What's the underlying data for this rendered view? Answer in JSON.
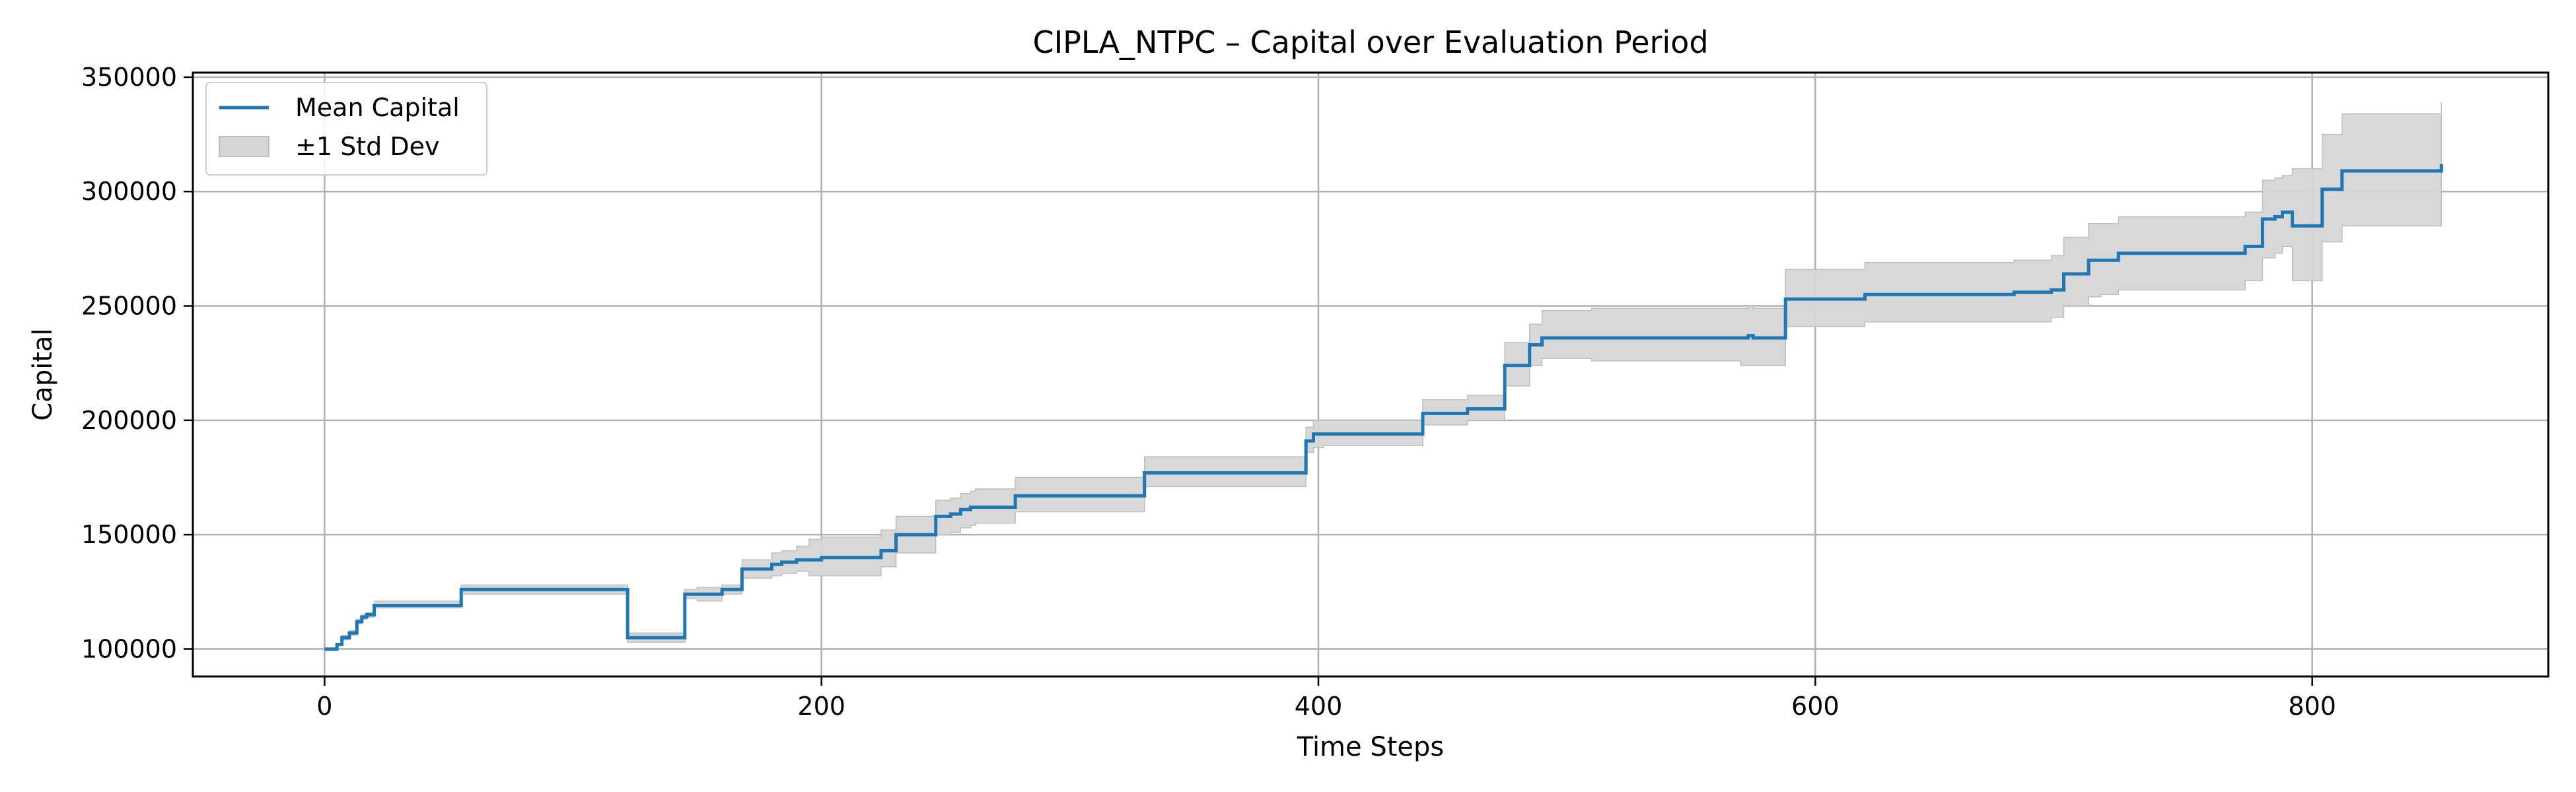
{
  "chart_data": {
    "type": "line",
    "title": "CIPLA_NTPC – Capital over Evaluation Period",
    "xlabel": "Time Steps",
    "ylabel": "Capital",
    "xlim": [
      -53,
      895
    ],
    "ylim": [
      88000,
      352000
    ],
    "xticks": [
      0,
      200,
      400,
      600,
      800
    ],
    "xtick_labels": [
      "0",
      "200",
      "400",
      "600",
      "800"
    ],
    "yticks": [
      100000,
      150000,
      200000,
      250000,
      300000,
      350000
    ],
    "ytick_labels": [
      "100000",
      "150000",
      "200000",
      "250000",
      "300000",
      "350000"
    ],
    "grid": true,
    "legend_position": "top-left",
    "colors": {
      "mean": "#1f77b4",
      "band": "#d6d6d6",
      "band_edge": "#bdbdbd"
    },
    "series": [
      {
        "name": "Mean Capital",
        "kind": "line",
        "x": [
          0,
          5,
          7,
          10,
          13,
          15,
          17,
          20,
          55,
          122,
          145,
          150,
          160,
          168,
          180,
          184,
          190,
          195,
          200,
          220,
          224,
          230,
          246,
          252,
          256,
          260,
          262,
          278,
          294,
          330,
          395,
          398,
          402,
          420,
          442,
          452,
          456,
          460,
          475,
          485,
          490,
          510,
          560,
          570,
          573,
          575,
          588,
          600,
          620,
          640,
          660,
          680,
          690,
          695,
          700,
          710,
          715,
          722,
          740,
          760,
          773,
          780,
          785,
          788,
          792,
          804,
          812,
          840,
          852
        ],
        "y": [
          100000,
          102000,
          105000,
          107000,
          112000,
          114000,
          115000,
          119000,
          126000,
          105000,
          124000,
          124000,
          126000,
          135000,
          137000,
          138000,
          139000,
          139000,
          140000,
          140000,
          143000,
          150000,
          158000,
          159000,
          161000,
          162000,
          162000,
          167000,
          167000,
          177000,
          191000,
          194000,
          194000,
          194000,
          203000,
          203000,
          203000,
          205000,
          224000,
          233000,
          236000,
          236000,
          236000,
          236000,
          237000,
          236000,
          253000,
          253000,
          255000,
          255000,
          255000,
          256000,
          256000,
          257000,
          264000,
          270000,
          270000,
          273000,
          273000,
          273000,
          276000,
          288000,
          289000,
          291000,
          285000,
          301000,
          309000,
          309000,
          312000
        ]
      },
      {
        "name": "±1 Std Dev",
        "kind": "band",
        "x": [
          0,
          5,
          7,
          10,
          13,
          15,
          17,
          20,
          55,
          122,
          145,
          150,
          160,
          168,
          180,
          184,
          190,
          195,
          200,
          220,
          224,
          230,
          246,
          252,
          256,
          260,
          262,
          278,
          294,
          330,
          395,
          398,
          402,
          420,
          442,
          452,
          456,
          460,
          475,
          485,
          490,
          510,
          560,
          570,
          573,
          575,
          588,
          600,
          620,
          640,
          660,
          680,
          690,
          695,
          700,
          710,
          715,
          722,
          740,
          760,
          773,
          780,
          785,
          788,
          792,
          804,
          812,
          840,
          852
        ],
        "lower": [
          100000,
          102000,
          104000,
          106000,
          111000,
          113000,
          114000,
          118000,
          124000,
          103000,
          122000,
          121000,
          124000,
          131000,
          132000,
          133000,
          134000,
          132000,
          132000,
          132000,
          136000,
          142000,
          150000,
          151000,
          153000,
          154000,
          155000,
          160000,
          160000,
          171000,
          186000,
          188000,
          189000,
          189000,
          198000,
          198000,
          198000,
          200000,
          215000,
          224000,
          227000,
          226000,
          226000,
          224000,
          224000,
          224000,
          241000,
          241000,
          243000,
          243000,
          243000,
          243000,
          243000,
          245000,
          250000,
          254000,
          255000,
          257000,
          257000,
          257000,
          261000,
          271000,
          273000,
          276000,
          261000,
          278000,
          285000,
          285000,
          285000
        ],
        "upper": [
          100000,
          102000,
          106000,
          108000,
          113000,
          115000,
          116000,
          121000,
          128000,
          107000,
          126000,
          127000,
          128000,
          139000,
          142000,
          143000,
          145000,
          148000,
          149000,
          149000,
          152000,
          158000,
          165000,
          166000,
          168000,
          169000,
          170000,
          175000,
          175000,
          184000,
          197000,
          200000,
          200000,
          200000,
          209000,
          209000,
          209000,
          211000,
          234000,
          242000,
          248000,
          249000,
          249000,
          249000,
          250000,
          249000,
          266000,
          266000,
          269000,
          269000,
          269000,
          270000,
          270000,
          272000,
          280000,
          286000,
          286000,
          289000,
          289000,
          289000,
          291000,
          305000,
          306000,
          307000,
          310000,
          325000,
          334000,
          334000,
          339000
        ]
      }
    ]
  }
}
